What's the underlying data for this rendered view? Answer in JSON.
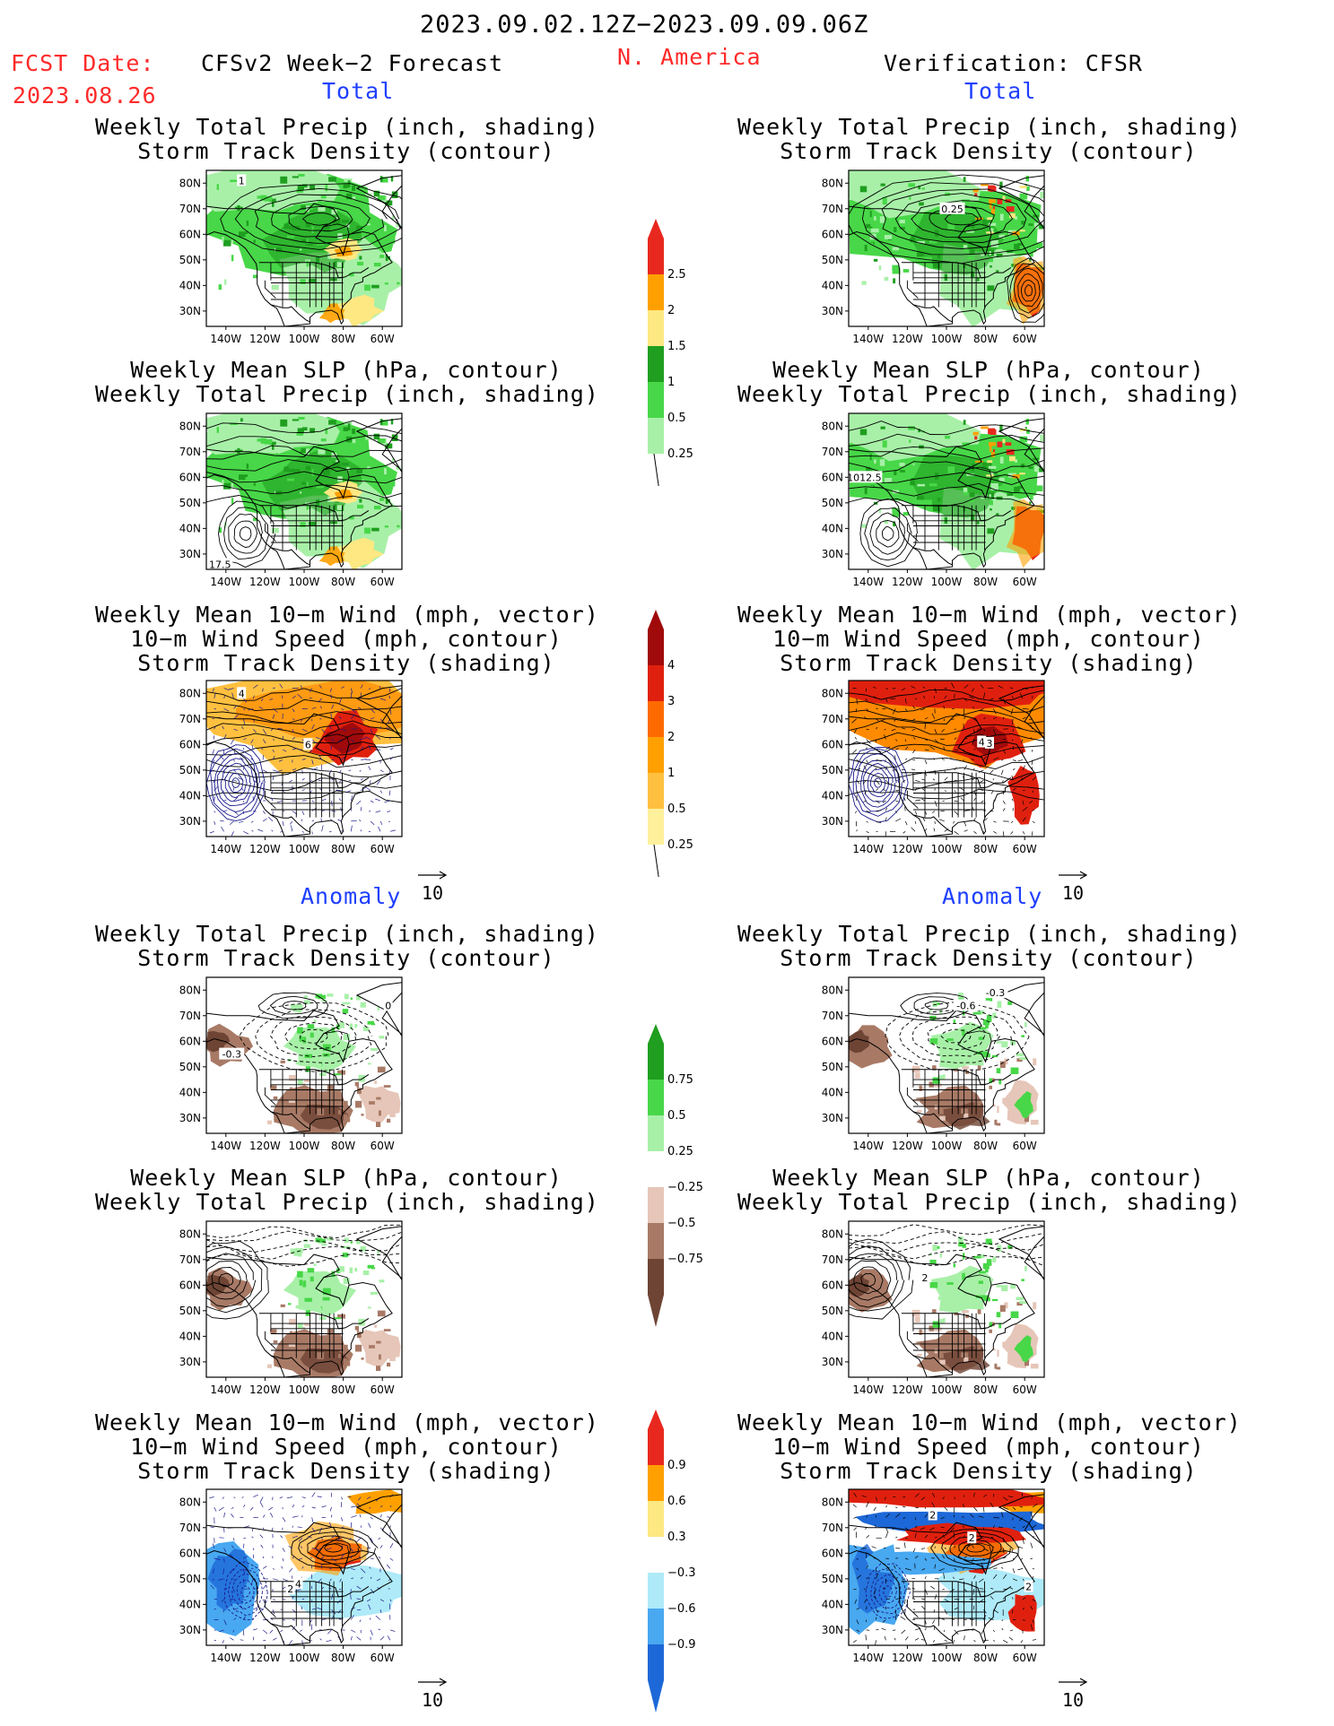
{
  "header": {
    "date_range": "2023.09.02.12Z−2023.09.09.06Z",
    "fcst_label": "FCST Date:",
    "fcst_date": "2023.08.26",
    "model": "CFSv2 Week−2 Forecast",
    "region": "N. America",
    "verification": "Verification: CFSR",
    "total_label": "Total",
    "anomaly_label": "Anomaly"
  },
  "panel_titles": {
    "precip_storm": [
      "Weekly Total Precip (inch, shading)",
      "Storm Track Density (contour)"
    ],
    "slp_precip": [
      "Weekly Mean SLP (hPa, contour)",
      "Weekly Total Precip (inch, shading)"
    ],
    "wind_storm": [
      "Weekly Mean 10−m Wind (mph, vector)",
      "10−m Wind Speed (mph, contour)",
      "Storm Track Density (shading)"
    ]
  },
  "axes": {
    "lat_ticks": [
      "80N",
      "70N",
      "60N",
      "50N",
      "40N",
      "30N"
    ],
    "lon_ticks": [
      "140W",
      "120W",
      "100W",
      "80W",
      "60W"
    ]
  },
  "vector_ref": "10",
  "contour_labels": {
    "fc_total_precip": "1",
    "vf_total_precip": "0.25",
    "fc_total_slp": "17.5",
    "vf_total_slp": "1012.5",
    "fc_total_wind_a": "4",
    "fc_total_wind_b": "6",
    "vf_total_wind_a": "4",
    "vf_total_wind_b": "3",
    "fc_anom_precip_a": "-0.3",
    "fc_anom_precip_b": "0",
    "vf_anom_precip_a": "-0.3",
    "vf_anom_precip_b": "-0.6",
    "vf_anom_slp": "2",
    "fc_anom_wind_a": "2",
    "fc_anom_wind_b": "4",
    "vf_anom_wind_a": "2",
    "vf_anom_wind_b": "2",
    "vf_anom_wind_c": "2"
  },
  "colorbars": {
    "precip_total": {
      "labels": [
        "2.5",
        "2",
        "1.5",
        "1",
        "0.5",
        "0.25"
      ],
      "colors": [
        "#e8281e",
        "#ffa000",
        "#fde882",
        "#1f9e1f",
        "#48d748",
        "#a8f0a8"
      ]
    },
    "storm_total": {
      "labels": [
        "4",
        "3",
        "2",
        "1",
        "0.5",
        "0.25"
      ],
      "colors": [
        "#a00a0a",
        "#e0200e",
        "#ff6a00",
        "#ffa000",
        "#ffc040",
        "#fff09c"
      ]
    },
    "precip_anom": {
      "labels": [
        "0.75",
        "0.5",
        "0.25",
        "−0.25",
        "−0.5",
        "−0.75"
      ],
      "colors": [
        "#1f9e1f",
        "#48d748",
        "#a8f0a8",
        "#ffffff",
        "#e6c6b8",
        "#a87a66",
        "#6e4434"
      ]
    },
    "storm_anom": {
      "labels": [
        "0.9",
        "0.6",
        "0.3",
        "−0.3",
        "−0.6",
        "−0.9"
      ],
      "colors": [
        "#e8281e",
        "#ffa000",
        "#fde882",
        "#ffffff",
        "#aeeaf8",
        "#48a8f0",
        "#1d68d8"
      ]
    }
  },
  "colors": {
    "precip_light": "#a8f0a8",
    "precip_mid": "#48d748",
    "precip_dark": "#1f9e1f",
    "precip_yellow": "#fde882",
    "precip_orange": "#ffa000",
    "precip_red": "#e8281e",
    "dry_light": "#e6c6b8",
    "dry_mid": "#a87a66",
    "dry_dark": "#6e4434",
    "storm_low": "#ffc040",
    "storm_mid": "#ff8a00",
    "storm_hi": "#e0200e",
    "storm_max": "#a00a0a",
    "cold_light": "#aeeaf8",
    "cold_mid": "#48a8f0",
    "cold_dark": "#1d68d8",
    "wind_contour": "#1a1a8c"
  }
}
